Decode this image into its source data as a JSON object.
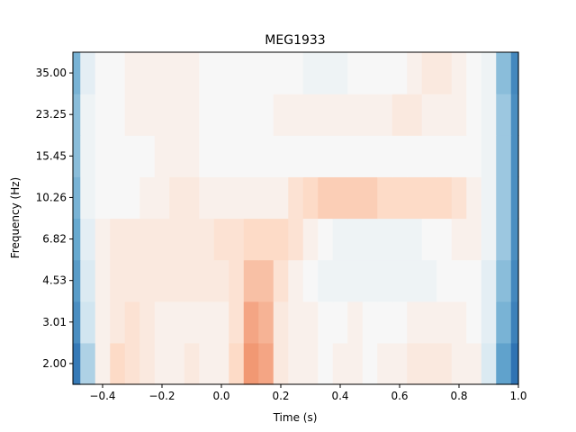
{
  "chart_data": {
    "type": "heatmap",
    "title": "MEG1933",
    "xlabel": "Time (s)",
    "ylabel": "Frequency (Hz)",
    "xlim": [
      -0.5,
      1.0
    ],
    "x_ticks": [
      -0.4,
      -0.2,
      0.0,
      0.2,
      0.4,
      0.6,
      0.8,
      1.0
    ],
    "x_tick_labels": [
      "−0.4",
      "−0.2",
      "0.0",
      "0.2",
      "0.4",
      "0.6",
      "0.8",
      "1.0"
    ],
    "y_categories": [
      "2.00",
      "3.01",
      "4.53",
      "6.82",
      "10.26",
      "15.45",
      "23.25",
      "35.00"
    ],
    "colormap": "RdBu_r",
    "color_range": [
      -1,
      1
    ],
    "x": [
      -0.5,
      -0.45,
      -0.4,
      -0.35,
      -0.3,
      -0.25,
      -0.2,
      -0.15,
      -0.1,
      -0.05,
      0.0,
      0.05,
      0.1,
      0.15,
      0.2,
      0.25,
      0.3,
      0.35,
      0.4,
      0.45,
      0.5,
      0.55,
      0.6,
      0.65,
      0.7,
      0.75,
      0.8,
      0.85,
      0.9,
      0.95,
      1.0
    ],
    "values": [
      [
        -0.85,
        -0.3,
        0.05,
        0.2,
        0.15,
        0.1,
        0.05,
        0.05,
        0.1,
        0.05,
        0.05,
        0.2,
        0.45,
        0.4,
        0.1,
        0.05,
        0.05,
        0.0,
        0.05,
        0.05,
        0.0,
        0.05,
        0.05,
        0.1,
        0.1,
        0.1,
        0.05,
        0.05,
        -0.15,
        -0.55,
        -0.9
      ],
      [
        -0.7,
        -0.2,
        0.05,
        0.1,
        0.15,
        0.1,
        0.05,
        0.05,
        0.05,
        0.05,
        0.05,
        0.15,
        0.4,
        0.35,
        0.1,
        0.05,
        0.05,
        0.0,
        0.0,
        0.05,
        0.0,
        0.0,
        0.0,
        0.05,
        0.05,
        0.05,
        0.05,
        0.0,
        -0.1,
        -0.45,
        -0.8
      ],
      [
        -0.6,
        -0.15,
        0.05,
        0.1,
        0.1,
        0.1,
        0.1,
        0.1,
        0.1,
        0.1,
        0.1,
        0.15,
        0.3,
        0.3,
        0.15,
        0.05,
        0.0,
        -0.05,
        -0.05,
        -0.05,
        -0.05,
        -0.05,
        -0.05,
        -0.05,
        -0.05,
        0.0,
        0.0,
        0.0,
        -0.1,
        -0.4,
        -0.75
      ],
      [
        -0.5,
        -0.1,
        0.05,
        0.1,
        0.1,
        0.1,
        0.1,
        0.1,
        0.1,
        0.1,
        0.15,
        0.15,
        0.2,
        0.2,
        0.2,
        0.15,
        0.05,
        0.0,
        -0.05,
        -0.05,
        -0.05,
        -0.05,
        -0.05,
        -0.05,
        0.0,
        0.0,
        0.05,
        0.05,
        -0.05,
        -0.35,
        -0.7
      ],
      [
        -0.45,
        -0.05,
        0.0,
        0.0,
        0.0,
        0.05,
        0.05,
        0.1,
        0.1,
        0.05,
        0.05,
        0.05,
        0.05,
        0.05,
        0.05,
        0.15,
        0.2,
        0.25,
        0.25,
        0.25,
        0.25,
        0.2,
        0.2,
        0.2,
        0.2,
        0.2,
        0.15,
        0.05,
        -0.05,
        -0.35,
        -0.7
      ],
      [
        -0.4,
        -0.05,
        0.0,
        0.0,
        0.0,
        0.0,
        0.05,
        0.05,
        0.05,
        0.0,
        0.0,
        0.0,
        0.0,
        0.0,
        0.0,
        0.0,
        0.0,
        0.0,
        0.0,
        0.0,
        0.0,
        0.0,
        0.0,
        0.0,
        0.0,
        0.0,
        0.0,
        0.0,
        -0.05,
        -0.35,
        -0.7
      ],
      [
        -0.4,
        -0.05,
        0.0,
        0.0,
        0.05,
        0.05,
        0.05,
        0.05,
        0.05,
        0.0,
        0.0,
        0.0,
        0.0,
        0.0,
        0.05,
        0.05,
        0.05,
        0.05,
        0.05,
        0.05,
        0.05,
        0.05,
        0.1,
        0.1,
        0.05,
        0.05,
        0.05,
        0.0,
        -0.05,
        -0.35,
        -0.7
      ],
      [
        -0.45,
        -0.1,
        0.0,
        0.0,
        0.05,
        0.05,
        0.05,
        0.05,
        0.05,
        0.0,
        0.0,
        0.0,
        0.0,
        0.0,
        0.0,
        0.0,
        -0.05,
        -0.05,
        -0.05,
        0.0,
        0.0,
        0.0,
        0.0,
        0.05,
        0.1,
        0.1,
        0.05,
        0.0,
        -0.05,
        -0.4,
        -0.75
      ]
    ]
  }
}
